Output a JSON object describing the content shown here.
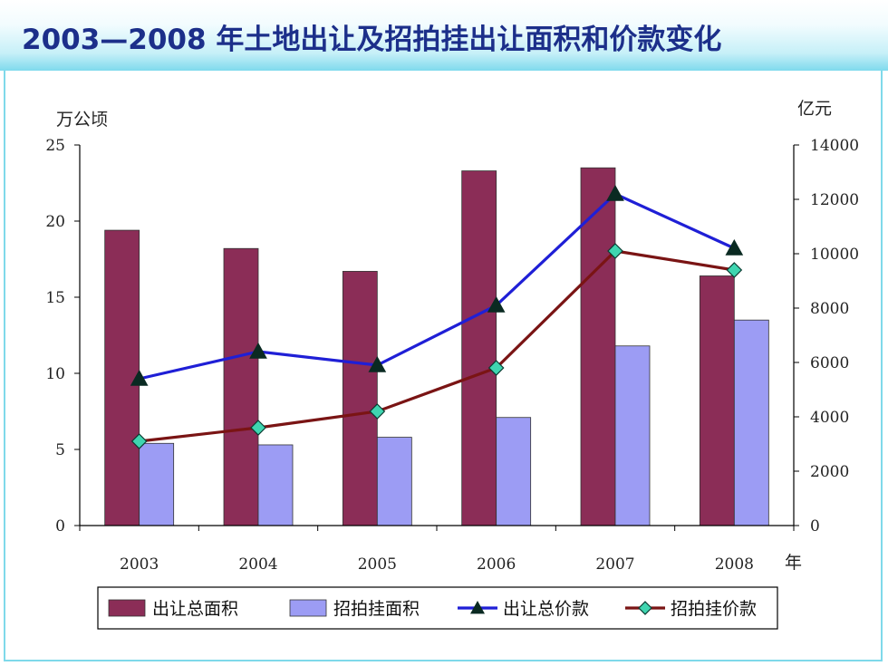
{
  "title": "2003—2008 年土地出让及招拍挂出让面积和价款变化",
  "chart_data": {
    "type": "bar",
    "title": "",
    "categories": [
      "2003",
      "2004",
      "2005",
      "2006",
      "2007",
      "2008"
    ],
    "xlabel": "年",
    "ylabel_left": "万公顷",
    "ylabel_right": "亿元",
    "ylim_left": [
      0,
      25
    ],
    "ylim_right": [
      0,
      14000
    ],
    "yticks_left": [
      "0",
      "5",
      "10",
      "15",
      "20",
      "25"
    ],
    "yticks_right": [
      "0",
      "2000",
      "4000",
      "6000",
      "8000",
      "10000",
      "12000",
      "14000"
    ],
    "grid": false,
    "legend_position": "bottom",
    "series": [
      {
        "name": "出让总面积",
        "type": "bar",
        "axis": "left",
        "color": "#8b2d57",
        "values": [
          19.4,
          18.2,
          16.7,
          23.3,
          23.5,
          16.4
        ]
      },
      {
        "name": "招拍挂面积",
        "type": "bar",
        "axis": "left",
        "color": "#9c9cf4",
        "values": [
          5.4,
          5.3,
          5.8,
          7.1,
          11.8,
          13.5
        ]
      },
      {
        "name": "出让总价款",
        "type": "line",
        "axis": "right",
        "color": "#1f1fd6",
        "marker": "triangle",
        "values": [
          5400,
          6400,
          5900,
          8100,
          12200,
          10200
        ]
      },
      {
        "name": "招拍挂价款",
        "type": "line",
        "axis": "right",
        "color": "#7a1414",
        "marker": "diamond",
        "values": [
          3100,
          3600,
          4200,
          5800,
          10100,
          9400
        ]
      }
    ]
  }
}
